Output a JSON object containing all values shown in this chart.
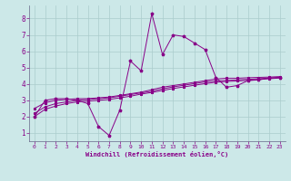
{
  "xlabel": "Windchill (Refroidissement éolien,°C)",
  "bg_color": "#cce8e8",
  "grid_color": "#aacccc",
  "line_color": "#880088",
  "x_main": [
    0,
    1,
    2,
    3,
    4,
    5,
    6,
    7,
    8,
    9,
    10,
    11,
    12,
    13,
    14,
    15,
    16,
    17,
    18,
    19,
    20,
    21,
    22,
    23
  ],
  "y_main": [
    2.0,
    3.0,
    3.1,
    3.1,
    3.0,
    2.8,
    1.4,
    0.85,
    2.4,
    5.4,
    4.8,
    8.3,
    5.8,
    7.0,
    6.9,
    6.5,
    6.1,
    4.4,
    3.8,
    3.9,
    4.2,
    4.25,
    4.35,
    4.4
  ],
  "x_line1": [
    0,
    1,
    2,
    3,
    4,
    5,
    6,
    7,
    8,
    9,
    10,
    11,
    12,
    13,
    14,
    15,
    16,
    17,
    18,
    19,
    20,
    21,
    22,
    23
  ],
  "y_line1": [
    2.5,
    2.85,
    3.0,
    3.05,
    3.1,
    3.1,
    3.15,
    3.2,
    3.3,
    3.4,
    3.5,
    3.65,
    3.8,
    3.9,
    4.0,
    4.1,
    4.2,
    4.3,
    4.35,
    4.35,
    4.38,
    4.4,
    4.42,
    4.45
  ],
  "x_line2": [
    0,
    1,
    2,
    3,
    4,
    5,
    6,
    7,
    8,
    9,
    10,
    11,
    12,
    13,
    14,
    15,
    16,
    17,
    18,
    19,
    20,
    21,
    22,
    23
  ],
  "y_line2": [
    2.2,
    2.6,
    2.8,
    2.9,
    3.0,
    3.05,
    3.1,
    3.15,
    3.25,
    3.35,
    3.45,
    3.55,
    3.7,
    3.82,
    3.92,
    4.02,
    4.12,
    4.18,
    4.22,
    4.25,
    4.28,
    4.32,
    4.36,
    4.4
  ],
  "x_line3": [
    0,
    1,
    2,
    3,
    4,
    5,
    6,
    7,
    8,
    9,
    10,
    11,
    12,
    13,
    14,
    15,
    16,
    17,
    18,
    19,
    20,
    21,
    22,
    23
  ],
  "y_line3": [
    2.0,
    2.45,
    2.65,
    2.8,
    2.9,
    2.95,
    3.0,
    3.05,
    3.15,
    3.25,
    3.38,
    3.48,
    3.6,
    3.72,
    3.82,
    3.92,
    4.02,
    4.1,
    4.15,
    4.18,
    4.22,
    4.27,
    4.32,
    4.36
  ],
  "ylim": [
    0.5,
    8.8
  ],
  "xlim": [
    -0.5,
    23.5
  ],
  "yticks": [
    1,
    2,
    3,
    4,
    5,
    6,
    7,
    8
  ],
  "xticks": [
    0,
    1,
    2,
    3,
    4,
    5,
    6,
    7,
    8,
    9,
    10,
    11,
    12,
    13,
    14,
    15,
    16,
    17,
    18,
    19,
    20,
    21,
    22,
    23
  ]
}
